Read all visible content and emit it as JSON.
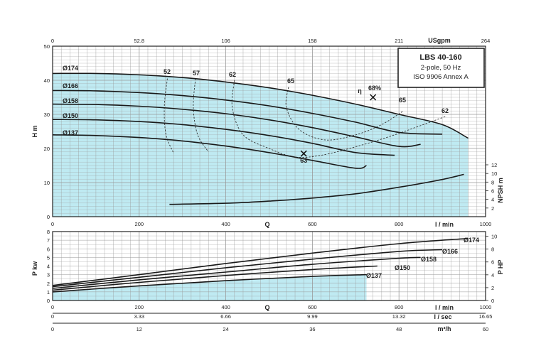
{
  "colors": {
    "fill": "#bfeaf2",
    "grid": "#9a9a9a",
    "curve": "#1a1a1a",
    "frame": "#222222"
  },
  "title_box": {
    "model": "LBS 40-160",
    "line2": "2-pole, 50 Hz",
    "line3": "ISO 9906 Annex A"
  },
  "axes": {
    "q_lmin": {
      "label": "l / min",
      "ticks": [
        "0",
        "200",
        "400",
        "600",
        "800",
        "1000"
      ],
      "range": [
        0,
        1000
      ]
    },
    "q_usgpm": {
      "label": "USgpm",
      "ticks": [
        "0",
        "52.8",
        "106",
        "158",
        "211",
        "264"
      ]
    },
    "q_lsec": {
      "label": "l / sec",
      "ticks": [
        "0",
        "3.33",
        "6.66",
        "9.99",
        "13.32",
        "16.65"
      ]
    },
    "q_m3h": {
      "label": "m³/h",
      "ticks": [
        "0",
        "12",
        "24",
        "36",
        "48",
        "60"
      ]
    },
    "q_symbol": "Q",
    "head": {
      "label": "H m",
      "ticks": [
        "0",
        "10",
        "20",
        "30",
        "40",
        "50"
      ],
      "range": [
        0,
        50
      ]
    },
    "npsh": {
      "label": "NPSH m",
      "ticks": [
        "2",
        "4",
        "6",
        "8",
        "10",
        "12"
      ],
      "range": [
        0,
        12
      ]
    },
    "power_kw": {
      "label": "P kw",
      "ticks": [
        "0",
        "1",
        "2",
        "3",
        "4",
        "5",
        "6",
        "7",
        "8"
      ],
      "range": [
        0,
        8
      ]
    },
    "power_hp": {
      "label": "P HP",
      "ticks": [
        "0",
        "2",
        "4",
        "6",
        "8",
        "10"
      ],
      "range": [
        0,
        10.73
      ]
    }
  },
  "chart_data": [
    {
      "type": "line",
      "title": "LBS 40-160",
      "xlabel": "Q l / min",
      "ylabel": "H m",
      "xlim": [
        0,
        1000
      ],
      "ylim": [
        0,
        50
      ],
      "series": [
        {
          "name": "Ø174",
          "x": [
            0,
            100,
            200,
            300,
            400,
            500,
            600,
            700,
            800,
            900,
            960
          ],
          "y": [
            42,
            42,
            41.6,
            40.8,
            39.5,
            37.8,
            35.6,
            33,
            30,
            27,
            23
          ]
        },
        {
          "name": "Ø166",
          "x": [
            0,
            100,
            200,
            300,
            400,
            500,
            600,
            700,
            800,
            900
          ],
          "y": [
            37,
            36.9,
            36.4,
            35.5,
            34.2,
            32.5,
            30.3,
            27.7,
            24.7,
            24.2
          ]
        },
        {
          "name": "Ø158",
          "x": [
            0,
            100,
            200,
            300,
            400,
            500,
            600,
            700,
            800,
            850
          ],
          "y": [
            33,
            32.9,
            32.4,
            31.5,
            30.2,
            28.4,
            26.1,
            23.4,
            20.6,
            21.2
          ]
        },
        {
          "name": "Ø150",
          "x": [
            0,
            100,
            200,
            300,
            400,
            500,
            600,
            700,
            790
          ],
          "y": [
            28.5,
            28.4,
            27.9,
            27,
            25.6,
            23.8,
            21.5,
            18.8,
            18
          ]
        },
        {
          "name": "Ø137",
          "x": [
            0,
            100,
            200,
            300,
            400,
            500,
            600,
            700,
            725
          ],
          "y": [
            24,
            23.8,
            23.2,
            22.2,
            20.7,
            18.8,
            16.5,
            14.2,
            15
          ]
        }
      ],
      "efficiency_lines": [
        {
          "label": "52",
          "x": [
            265,
            258,
            262,
            280
          ],
          "y": [
            40.5,
            32,
            24,
            18.5
          ]
        },
        {
          "label": "57",
          "x": [
            330,
            325,
            335,
            360
          ],
          "y": [
            40.5,
            32,
            24,
            19
          ]
        },
        {
          "label": "62",
          "x": [
            420,
            415,
            440,
            500,
            560,
            620,
            700,
            790,
            910
          ],
          "y": [
            40,
            32,
            24,
            20,
            17.5,
            18,
            20.5,
            24,
            29.5
          ]
        },
        {
          "label": "65",
          "x": [
            545,
            540,
            570,
            630,
            700,
            760,
            810
          ],
          "y": [
            38,
            32,
            25.5,
            22.5,
            24,
            27,
            31
          ]
        }
      ],
      "efficiency_labels": [
        "η",
        "68%"
      ],
      "bep_markers": [
        {
          "label": "63",
          "x": 580,
          "y": 18.5
        },
        {
          "label": "",
          "x": 740,
          "y": 35
        }
      ]
    },
    {
      "type": "line",
      "title": "",
      "xlabel": "Q l / min",
      "ylabel": "NPSH m",
      "xlim": [
        0,
        1000
      ],
      "ylim": [
        0,
        12
      ],
      "series": [
        {
          "name": "",
          "x": [
            270,
            400,
            500,
            600,
            700,
            800,
            900,
            950
          ],
          "y": [
            2.85,
            3.1,
            3.6,
            4.3,
            5.3,
            6.8,
            8.6,
            9.8
          ]
        }
      ]
    },
    {
      "type": "line",
      "title": "",
      "xlabel": "Q l / min",
      "ylabel": "P kw",
      "xlim": [
        0,
        1000
      ],
      "ylim": [
        0,
        8
      ],
      "series": [
        {
          "name": "Ø174",
          "x": [
            0,
            200,
            400,
            600,
            800,
            960
          ],
          "y": [
            1.75,
            3.0,
            4.3,
            5.5,
            6.6,
            7.2
          ]
        },
        {
          "name": "Ø166",
          "x": [
            0,
            200,
            400,
            600,
            800,
            900
          ],
          "y": [
            1.6,
            2.7,
            3.8,
            4.8,
            5.7,
            5.9
          ]
        },
        {
          "name": "Ø158",
          "x": [
            0,
            200,
            400,
            600,
            800,
            850
          ],
          "y": [
            1.4,
            2.4,
            3.3,
            4.2,
            4.9,
            5.0
          ]
        },
        {
          "name": "Ø150",
          "x": [
            0,
            200,
            400,
            600,
            750
          ],
          "y": [
            1.2,
            2.1,
            2.9,
            3.6,
            4.0
          ]
        },
        {
          "name": "Ø137",
          "x": [
            0,
            200,
            400,
            600,
            725
          ],
          "y": [
            1.0,
            1.7,
            2.3,
            2.8,
            3.0
          ]
        }
      ]
    }
  ]
}
